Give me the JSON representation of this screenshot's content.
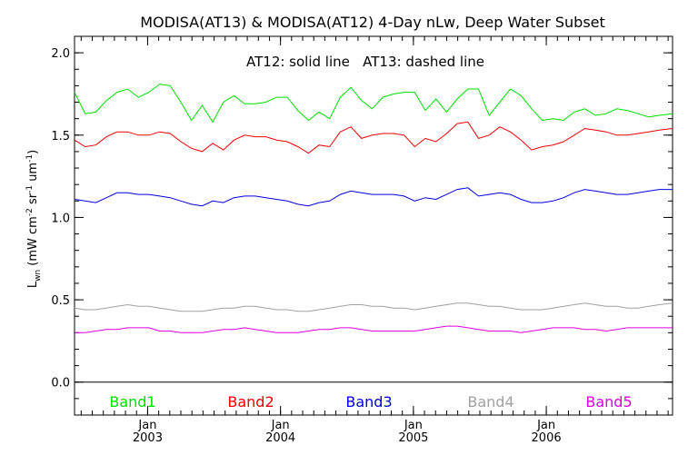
{
  "chart_data": {
    "type": "line",
    "title": "MODISA(AT13) & MODISA(AT12) 4-Day nLw, Deep Water Subset",
    "annotation": "AT12: solid line   AT13: dashed line",
    "ylabel": {
      "symbol": "L",
      "symbol_sub": "wn",
      "text": "(mW cm",
      "unit_a_sup": "-2",
      "unit_b": " sr",
      "unit_b_sup": "-1",
      "unit_c": " um",
      "unit_c_sup": "-1",
      "close": ")"
    },
    "ylim": [
      -0.2,
      2.1
    ],
    "y_ticks": [
      "0.0",
      "0.5",
      "1.0",
      "1.5",
      "2.0"
    ],
    "x_tick_month": "Jan",
    "x_ticks": [
      "2003",
      "2004",
      "2005",
      "2006"
    ],
    "xlim": [
      2002.45,
      2006.95
    ],
    "grid": false,
    "legend_position": "bottom",
    "x": [
      2002.45,
      2002.53,
      2002.61,
      2002.69,
      2002.77,
      2002.85,
      2002.93,
      2003.01,
      2003.09,
      2003.17,
      2003.25,
      2003.33,
      2003.41,
      2003.49,
      2003.57,
      2003.65,
      2003.73,
      2003.81,
      2003.89,
      2003.97,
      2004.05,
      2004.13,
      2004.21,
      2004.29,
      2004.37,
      2004.45,
      2004.53,
      2004.61,
      2004.69,
      2004.77,
      2004.85,
      2004.93,
      2005.01,
      2005.09,
      2005.17,
      2005.25,
      2005.33,
      2005.41,
      2005.49,
      2005.57,
      2005.65,
      2005.73,
      2005.81,
      2005.89,
      2005.97,
      2006.05,
      2006.13,
      2006.21,
      2006.29,
      2006.37,
      2006.45,
      2006.53,
      2006.61,
      2006.69,
      2006.77,
      2006.85,
      2006.95
    ],
    "series": [
      {
        "name": "Band1",
        "color": "#00dd00",
        "values": [
          1.76,
          1.63,
          1.64,
          1.71,
          1.76,
          1.78,
          1.73,
          1.76,
          1.81,
          1.8,
          1.7,
          1.59,
          1.68,
          1.58,
          1.7,
          1.74,
          1.69,
          1.69,
          1.7,
          1.73,
          1.73,
          1.65,
          1.59,
          1.64,
          1.6,
          1.73,
          1.79,
          1.71,
          1.66,
          1.73,
          1.75,
          1.76,
          1.76,
          1.65,
          1.72,
          1.64,
          1.72,
          1.78,
          1.78,
          1.62,
          1.7,
          1.78,
          1.74,
          1.66,
          1.59,
          1.6,
          1.59,
          1.64,
          1.66,
          1.62,
          1.63,
          1.66,
          1.65,
          1.63,
          1.61,
          1.62,
          1.63
        ]
      },
      {
        "name": "Band2",
        "color": "#ee0000",
        "values": [
          1.47,
          1.43,
          1.44,
          1.49,
          1.52,
          1.52,
          1.5,
          1.5,
          1.52,
          1.51,
          1.46,
          1.42,
          1.4,
          1.45,
          1.41,
          1.47,
          1.5,
          1.49,
          1.49,
          1.47,
          1.46,
          1.43,
          1.39,
          1.44,
          1.43,
          1.52,
          1.55,
          1.48,
          1.5,
          1.51,
          1.51,
          1.5,
          1.43,
          1.48,
          1.46,
          1.51,
          1.57,
          1.58,
          1.48,
          1.5,
          1.55,
          1.52,
          1.47,
          1.41,
          1.43,
          1.44,
          1.46,
          1.5,
          1.54,
          1.53,
          1.52,
          1.5,
          1.5,
          1.51,
          1.52,
          1.53,
          1.54
        ]
      },
      {
        "name": "Band3",
        "color": "#0000dd",
        "values": [
          1.11,
          1.1,
          1.09,
          1.12,
          1.15,
          1.15,
          1.14,
          1.14,
          1.13,
          1.12,
          1.1,
          1.08,
          1.07,
          1.1,
          1.09,
          1.12,
          1.13,
          1.13,
          1.12,
          1.11,
          1.1,
          1.08,
          1.07,
          1.09,
          1.1,
          1.14,
          1.16,
          1.15,
          1.14,
          1.14,
          1.14,
          1.13,
          1.1,
          1.12,
          1.11,
          1.14,
          1.17,
          1.18,
          1.13,
          1.14,
          1.15,
          1.14,
          1.11,
          1.09,
          1.09,
          1.1,
          1.12,
          1.15,
          1.17,
          1.16,
          1.15,
          1.14,
          1.14,
          1.15,
          1.16,
          1.17,
          1.17
        ]
      },
      {
        "name": "Band4",
        "color": "#a0a0a0",
        "values": [
          0.45,
          0.44,
          0.44,
          0.45,
          0.46,
          0.47,
          0.46,
          0.46,
          0.45,
          0.44,
          0.43,
          0.43,
          0.43,
          0.44,
          0.45,
          0.45,
          0.46,
          0.46,
          0.45,
          0.44,
          0.44,
          0.43,
          0.43,
          0.44,
          0.45,
          0.46,
          0.47,
          0.47,
          0.46,
          0.46,
          0.45,
          0.45,
          0.44,
          0.45,
          0.46,
          0.47,
          0.48,
          0.48,
          0.47,
          0.46,
          0.46,
          0.45,
          0.44,
          0.44,
          0.44,
          0.45,
          0.46,
          0.47,
          0.48,
          0.47,
          0.46,
          0.46,
          0.45,
          0.45,
          0.46,
          0.47,
          0.48
        ]
      },
      {
        "name": "Band5",
        "color": "#dd00dd",
        "values": [
          0.3,
          0.3,
          0.31,
          0.32,
          0.32,
          0.33,
          0.33,
          0.33,
          0.31,
          0.31,
          0.3,
          0.3,
          0.3,
          0.31,
          0.32,
          0.32,
          0.33,
          0.32,
          0.31,
          0.3,
          0.3,
          0.3,
          0.31,
          0.32,
          0.32,
          0.33,
          0.33,
          0.32,
          0.31,
          0.31,
          0.31,
          0.31,
          0.31,
          0.32,
          0.33,
          0.34,
          0.34,
          0.33,
          0.32,
          0.31,
          0.31,
          0.31,
          0.3,
          0.31,
          0.32,
          0.33,
          0.33,
          0.33,
          0.32,
          0.32,
          0.31,
          0.32,
          0.33,
          0.33,
          0.33,
          0.33,
          0.33
        ]
      }
    ]
  }
}
